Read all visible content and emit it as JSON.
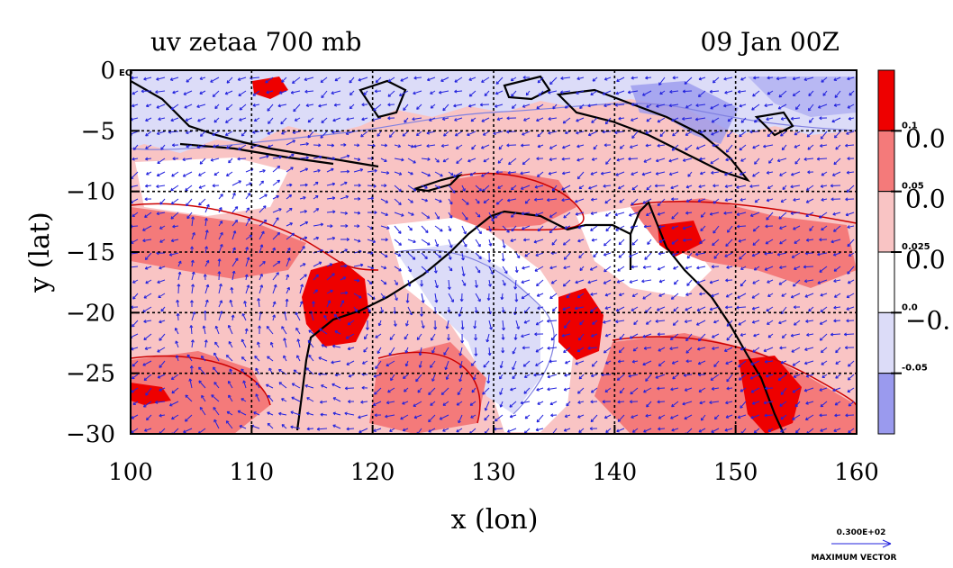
{
  "chart_data": {
    "type": "heatmap",
    "title_left": "uv zetaa 700 mb",
    "title_right": "09 Jan 00Z",
    "xlabel": "x (lon)",
    "ylabel": "y (lat)",
    "xlim": [
      100,
      160
    ],
    "ylim": [
      -30,
      0
    ],
    "x_ticks": [
      "100",
      "110",
      "120",
      "130",
      "140",
      "150",
      "160"
    ],
    "y_ticks": [
      "0",
      "−5",
      "−10",
      "−15",
      "−20",
      "−25",
      "−30"
    ],
    "eq_label": "EQ",
    "grid": true,
    "colorbar": {
      "levels": [
        "0.1",
        "0.05",
        "0.025",
        "0.0",
        "-0.05"
      ],
      "large_labels": [
        "0.0",
        "0.0",
        "0.0",
        "−0."
      ],
      "colors": [
        "#ee0000",
        "#f47a7a",
        "#f9c4c4",
        "#ffffff",
        "#dcdcf8",
        "#9a9aee"
      ]
    },
    "vector_legend": {
      "value": "0.300E+02",
      "label": "MAXIMUM VECTOR"
    },
    "colors": {
      "strong_pos": "#ee0000",
      "mid_pos": "#f47a7a",
      "weak_pos": "#f9c4c4",
      "weak_neg": "#dcdcf8",
      "strong_neg": "#9a9aee",
      "vector": "#2222dd",
      "contour": "#cc0000"
    }
  }
}
